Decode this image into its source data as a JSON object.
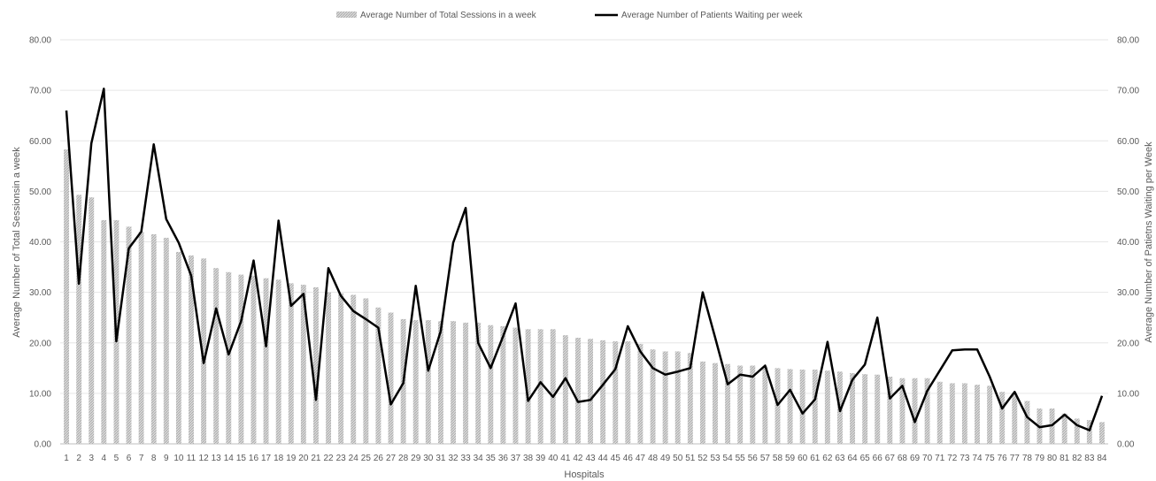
{
  "chart_data": {
    "type": "bar",
    "title": "",
    "xlabel": "Hospitals",
    "ylabel": "Average Number of Total  Sessionsin a week",
    "y2label": "Average Number of Patietns Waiting per Week",
    "ylim": [
      0,
      80
    ],
    "y2lim": [
      0,
      80
    ],
    "yticks": [
      "0.00",
      "10.00",
      "20.00",
      "30.00",
      "40.00",
      "50.00",
      "60.00",
      "70.00",
      "80.00"
    ],
    "grid": true,
    "legend_position": "top-center",
    "categories": [
      "1",
      "2",
      "3",
      "4",
      "5",
      "6",
      "7",
      "8",
      "9",
      "10",
      "11",
      "12",
      "13",
      "14",
      "15",
      "16",
      "17",
      "18",
      "19",
      "20",
      "21",
      "22",
      "23",
      "24",
      "25",
      "26",
      "27",
      "28",
      "29",
      "30",
      "31",
      "32",
      "33",
      "34",
      "35",
      "36",
      "37",
      "38",
      "39",
      "40",
      "41",
      "42",
      "43",
      "44",
      "45",
      "46",
      "47",
      "48",
      "49",
      "50",
      "51",
      "52",
      "53",
      "54",
      "55",
      "56",
      "57",
      "58",
      "59",
      "60",
      "61",
      "62",
      "63",
      "64",
      "65",
      "66",
      "67",
      "68",
      "69",
      "70",
      "71",
      "72",
      "73",
      "74",
      "75",
      "76",
      "77",
      "78",
      "79",
      "80",
      "81",
      "82",
      "83",
      "84"
    ],
    "series": [
      {
        "name": "Average Number of Total Sessions in a week",
        "kind": "bar",
        "color": "#bfbfbf",
        "values": [
          58.3,
          49.3,
          48.8,
          44.3,
          44.3,
          43.0,
          42.0,
          41.5,
          40.8,
          38.0,
          37.3,
          36.7,
          34.8,
          34.0,
          33.5,
          33.3,
          32.8,
          32.5,
          31.8,
          31.5,
          31.0,
          30.0,
          29.8,
          29.5,
          28.8,
          27.0,
          26.0,
          24.7,
          24.5,
          24.5,
          24.3,
          24.3,
          24.0,
          24.0,
          23.5,
          23.3,
          23.0,
          22.7,
          22.7,
          22.7,
          21.5,
          21.0,
          20.8,
          20.5,
          20.3,
          20.3,
          19.8,
          18.7,
          18.3,
          18.3,
          18.0,
          16.3,
          16.0,
          15.8,
          15.5,
          15.5,
          15.3,
          15.0,
          14.8,
          14.7,
          14.7,
          14.5,
          14.3,
          14.0,
          13.8,
          13.7,
          13.3,
          13.0,
          13.0,
          13.0,
          12.3,
          12.0,
          12.0,
          11.7,
          11.5,
          10.3,
          10.0,
          8.5,
          7.0,
          7.0,
          6.0,
          5.0,
          4.7,
          4.3
        ]
      },
      {
        "name": "Average Number of Patients Waiting per week",
        "kind": "line",
        "axis": "right",
        "color": "#000000",
        "values": [
          66.0,
          31.7,
          59.5,
          70.3,
          20.3,
          38.7,
          42.0,
          59.3,
          44.5,
          39.8,
          33.3,
          16.0,
          26.8,
          17.7,
          24.3,
          36.3,
          19.3,
          44.2,
          27.3,
          29.7,
          8.7,
          34.8,
          29.3,
          26.3,
          24.7,
          23.0,
          7.8,
          12.0,
          31.3,
          14.5,
          22.3,
          39.8,
          46.7,
          20.0,
          15.0,
          21.3,
          27.8,
          8.5,
          12.2,
          9.3,
          13.0,
          8.3,
          8.7,
          11.7,
          14.8,
          23.3,
          18.3,
          15.0,
          13.7,
          14.3,
          15.0,
          30.0,
          21.0,
          11.8,
          13.7,
          13.3,
          15.5,
          7.7,
          10.7,
          6.0,
          8.8,
          20.2,
          6.5,
          12.7,
          15.7,
          25.0,
          9.0,
          11.5,
          4.3,
          10.5,
          14.5,
          18.5,
          18.7,
          18.7,
          13.3,
          7.0,
          10.3,
          5.3,
          3.3,
          3.7,
          5.8,
          3.7,
          2.7,
          9.5
        ]
      }
    ]
  }
}
